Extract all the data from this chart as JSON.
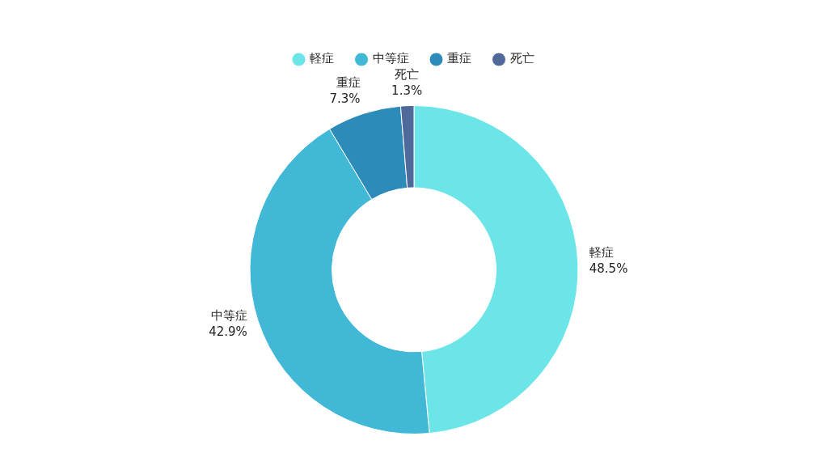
{
  "chart_data": {
    "type": "donut",
    "categories": [
      "軽症",
      "中等症",
      "重症",
      "死亡"
    ],
    "values": [
      48.5,
      42.9,
      7.3,
      1.3
    ],
    "value_labels": [
      "48.5%",
      "42.9%",
      "7.3%",
      "1.3%"
    ],
    "colors": [
      "#6ce5e8",
      "#41b8d5",
      "#2d8bba",
      "#4f6a9a"
    ],
    "legend": "top"
  }
}
